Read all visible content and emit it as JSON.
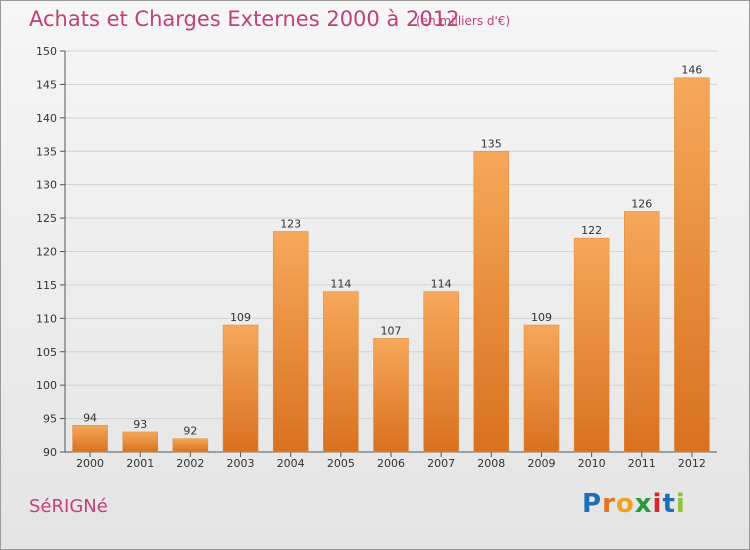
{
  "header": {
    "title": "Achats et Charges Externes 2000 à 2012",
    "subtitle": "(en milliers d'€)"
  },
  "footer": {
    "commune": "SéRIGNé",
    "brand": "Proxiti"
  },
  "colors": {
    "title": "#c0407a",
    "bar_light": "#f6a85a",
    "bar_dark": "#d9711f",
    "brand_letters": [
      "#1f6fb8",
      "#e3731c",
      "#f0a21f",
      "#2a9a3b",
      "#d6282b",
      "#1f6fb8",
      "#8fc33a"
    ]
  },
  "chart_data": {
    "type": "bar",
    "title": "Achats et Charges Externes 2000 à 2012",
    "subtitle": "(en milliers d'€)",
    "categories": [
      "2000",
      "2001",
      "2002",
      "2003",
      "2004",
      "2005",
      "2006",
      "2007",
      "2008",
      "2009",
      "2010",
      "2011",
      "2012"
    ],
    "values": [
      94,
      93,
      92,
      109,
      123,
      114,
      107,
      114,
      135,
      109,
      122,
      126,
      146
    ],
    "ylim": [
      90,
      150
    ],
    "yticks": [
      90,
      95,
      100,
      105,
      110,
      115,
      120,
      125,
      130,
      135,
      140,
      145,
      150
    ],
    "grid": true,
    "legend": "none"
  }
}
